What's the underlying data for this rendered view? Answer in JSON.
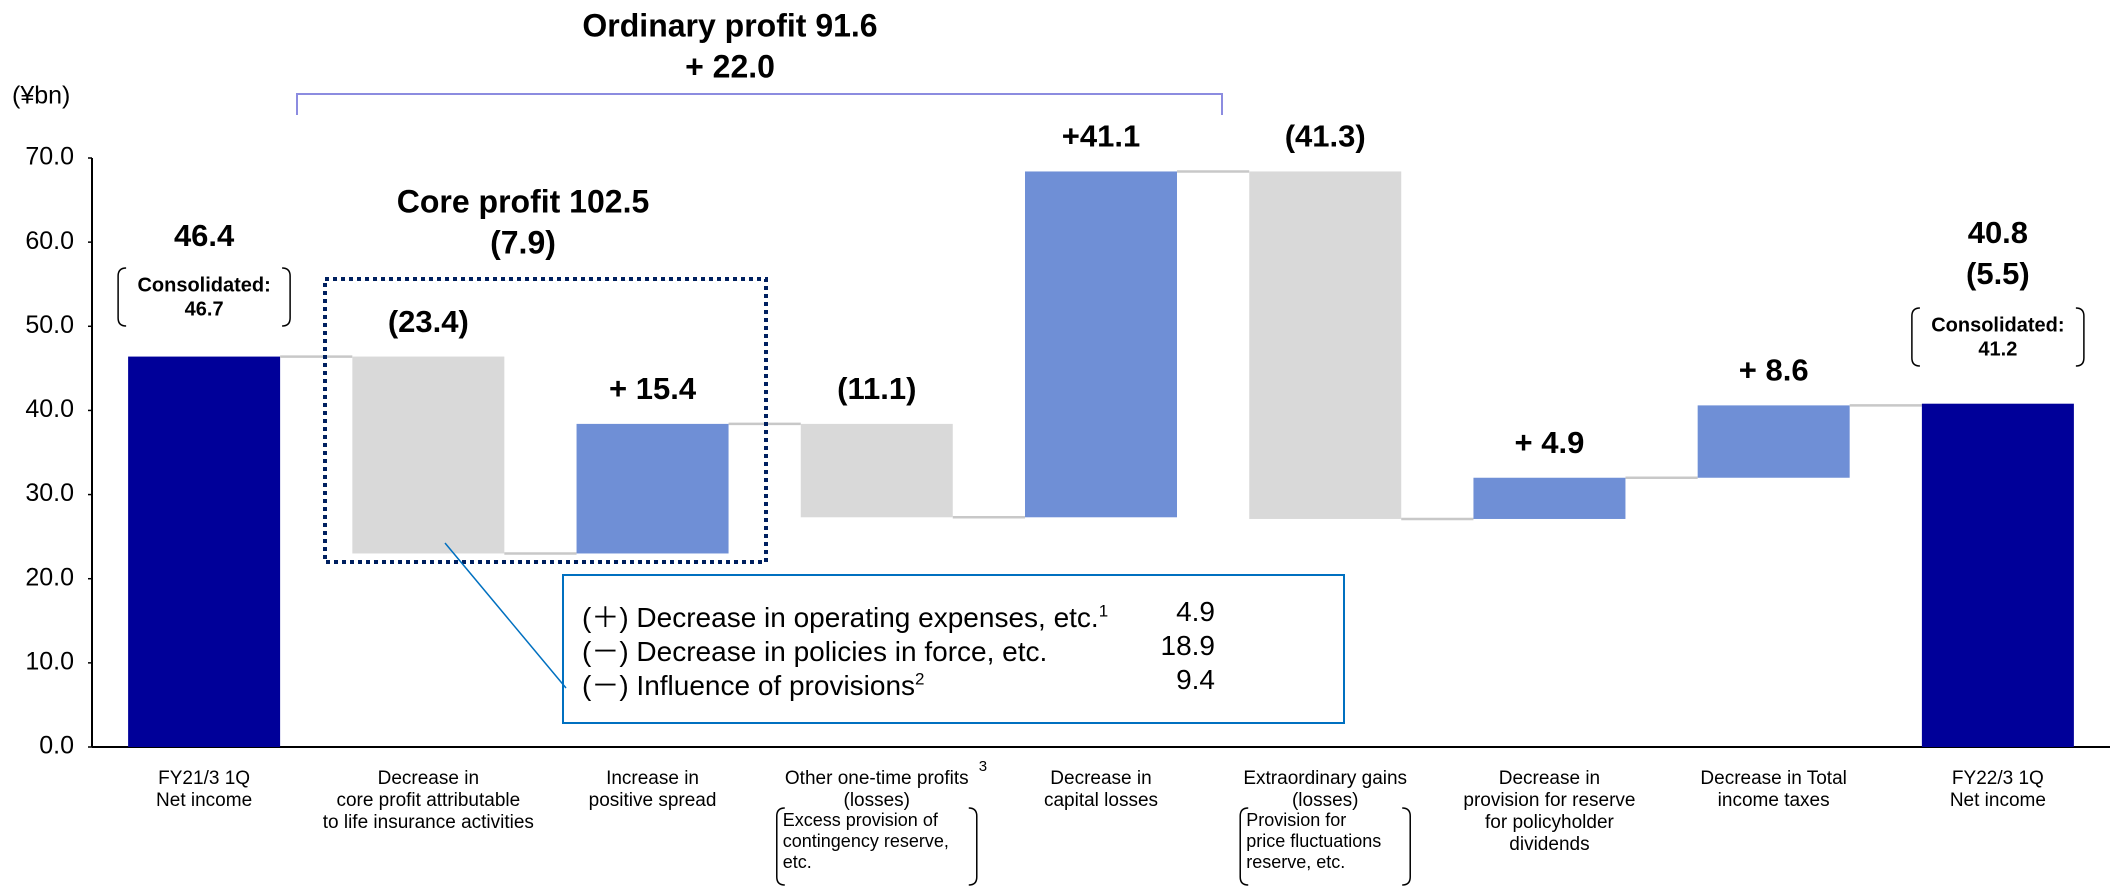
{
  "chart_data": {
    "type": "waterfall",
    "unit_label": "(¥bn)",
    "categories": [
      "FY21/3 1Q\nNet income",
      "Decrease in\ncore profit attributable\nto life insurance activities",
      "Increase in\npositive spread",
      "Other one-time profits\n(losses)",
      "Decrease in\ncapital losses",
      "Extraordinary gains\n(losses)",
      "Decrease in\nprovision for reserve\nfor policyholder\ndividends",
      "Decrease in Total\nincome taxes",
      "FY22/3 1Q\nNet income"
    ],
    "values": [
      46.4,
      -23.4,
      15.4,
      -11.1,
      41.1,
      -41.3,
      4.9,
      8.6,
      40.8
    ],
    "value_labels": [
      "46.4",
      "(23.4)",
      "+ 15.4",
      "(11.1)",
      "+41.1",
      "(41.3)",
      "+ 4.9",
      "+ 8.6",
      "40.8"
    ],
    "is_total": [
      true,
      false,
      false,
      false,
      false,
      false,
      false,
      false,
      true
    ],
    "colors": {
      "total": "#000099",
      "increase": "#6f8fd6",
      "decrease": "#d9d9d9"
    },
    "ylim": [
      0,
      70
    ],
    "yticks": [
      {
        "value": 0,
        "label": "0.0"
      },
      {
        "value": 10,
        "label": "10.0"
      },
      {
        "value": 20,
        "label": "20.0"
      },
      {
        "value": 30,
        "label": "30.0"
      },
      {
        "value": 40,
        "label": "40.0"
      },
      {
        "value": 50,
        "label": "50.0"
      },
      {
        "value": 60,
        "label": "60.0"
      },
      {
        "value": 70,
        "label": "70.0"
      }
    ],
    "category_superscript": "3",
    "bracket_notes": [
      "Excess provision of\ncontingency reserve,\netc.",
      "Provision for\nprice fluctuations\nreserve, etc."
    ],
    "consolidated": [
      {
        "label": "Consolidated:",
        "value": 46.7
      },
      {
        "label": "Consolidated:",
        "value": 41.2
      }
    ],
    "total_change": "(5.5)",
    "ordinary_profit": {
      "label": "Ordinary profit  91.6",
      "change": "+ 22.0"
    },
    "core_profit": {
      "label": "Core profit  102.5",
      "change": "(7.9)"
    },
    "breakdown": [
      {
        "label": "(＋) Decrease in operating expenses, etc.",
        "note": "1",
        "value": 4.9
      },
      {
        "label": "(－) Decrease in policies in force, etc.",
        "value": 18.9
      },
      {
        "label": "(－) Influence of provisions",
        "note": "2",
        "value": 9.4
      }
    ]
  }
}
